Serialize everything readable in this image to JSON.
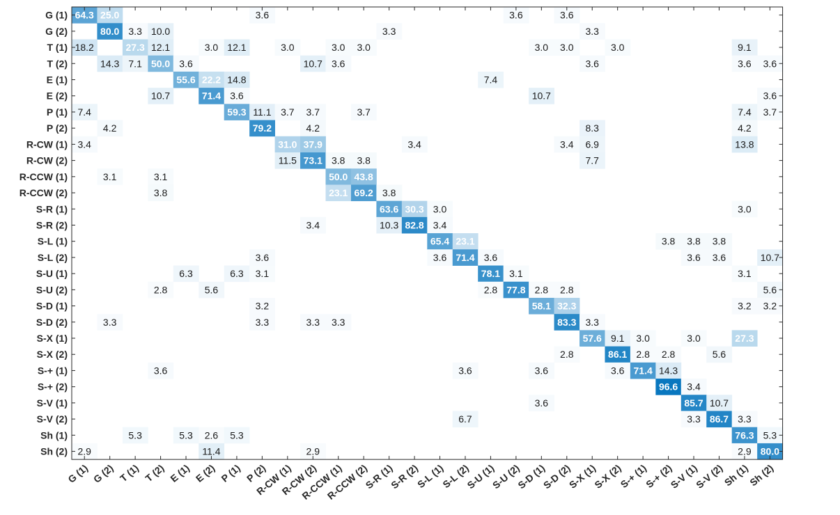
{
  "chart_data": {
    "type": "heatmap",
    "title": "",
    "xlabel": "",
    "ylabel": "",
    "colormap": {
      "low": "#ffffff",
      "high": "#0072bd"
    },
    "value_range": [
      0,
      100
    ],
    "grid": false,
    "categories": [
      "G (1)",
      "G (2)",
      "T (1)",
      "T (2)",
      "E (1)",
      "E (2)",
      "P (1)",
      "P (2)",
      "R-CW (1)",
      "R-CW (2)",
      "R-CCW (1)",
      "R-CCW (2)",
      "S-R (1)",
      "S-R (2)",
      "S-L (1)",
      "S-L (2)",
      "S-U (1)",
      "S-U (2)",
      "S-D (1)",
      "S-D (2)",
      "S-X (1)",
      "S-X (2)",
      "S-+ (1)",
      "S-+ (2)",
      "S-V (1)",
      "S-V (2)",
      "Sh (1)",
      "Sh (2)"
    ],
    "rows": [
      {
        "0": 64.3,
        "1": 25.0,
        "7": 3.6,
        "17": 3.6,
        "19": 3.6
      },
      {
        "1": 80.0,
        "2": 3.3,
        "3": 10.0,
        "12": 3.3,
        "20": 3.3
      },
      {
        "0": 18.2,
        "2": 27.3,
        "3": 12.1,
        "5": 3.0,
        "6": 12.1,
        "8": 3.0,
        "10": 3.0,
        "11": 3.0,
        "18": 3.0,
        "19": 3.0,
        "21": 3.0,
        "26": 9.1
      },
      {
        "1": 14.3,
        "2": 7.1,
        "3": 50.0,
        "4": 3.6,
        "9": 10.7,
        "10": 3.6,
        "20": 3.6,
        "26": 3.6,
        "27": 3.6
      },
      {
        "4": 55.6,
        "5": 22.2,
        "6": 14.8,
        "16": 7.4
      },
      {
        "3": 10.7,
        "5": 71.4,
        "6": 3.6,
        "18": 10.7,
        "27": 3.6
      },
      {
        "0": 7.4,
        "6": 59.3,
        "7": 11.1,
        "8": 3.7,
        "9": 3.7,
        "11": 3.7,
        "26": 7.4,
        "27": 3.7
      },
      {
        "1": 4.2,
        "7": 79.2,
        "9": 4.2,
        "20": 8.3,
        "26": 4.2
      },
      {
        "0": 3.4,
        "8": 31.0,
        "9": 37.9,
        "13": 3.4,
        "19": 3.4,
        "20": 6.9,
        "26": 13.8
      },
      {
        "8": 11.5,
        "9": 73.1,
        "10": 3.8,
        "11": 3.8,
        "20": 7.7
      },
      {
        "1": 3.1,
        "3": 3.1,
        "10": 50.0,
        "11": 43.8
      },
      {
        "3": 3.8,
        "10": 23.1,
        "11": 69.2,
        "12": 3.8
      },
      {
        "12": 63.6,
        "13": 30.3,
        "14": 3.0,
        "26": 3.0
      },
      {
        "9": 3.4,
        "12": 10.3,
        "13": 82.8,
        "14": 3.4
      },
      {
        "14": 65.4,
        "15": 23.1,
        "23": 3.8,
        "24": 3.8,
        "25": 3.8
      },
      {
        "7": 3.6,
        "14": 3.6,
        "15": 71.4,
        "16": 3.6,
        "24": 3.6,
        "25": 3.6,
        "27": 10.7
      },
      {
        "4": 6.3,
        "6": 6.3,
        "7": 3.1,
        "16": 78.1,
        "17": 3.1,
        "26": 3.1
      },
      {
        "3": 2.8,
        "5": 5.6,
        "16": 2.8,
        "17": 77.8,
        "18": 2.8,
        "19": 2.8,
        "27": 5.6
      },
      {
        "7": 3.2,
        "18": 58.1,
        "19": 32.3,
        "26": 3.2,
        "27": 3.2
      },
      {
        "1": 3.3,
        "7": 3.3,
        "9": 3.3,
        "10": 3.3,
        "19": 83.3,
        "20": 3.3
      },
      {
        "20": 57.6,
        "21": 9.1,
        "22": 3.0,
        "24": 3.0,
        "26": 27.3
      },
      {
        "19": 2.8,
        "21": 86.1,
        "22": 2.8,
        "23": 2.8,
        "25": 5.6
      },
      {
        "3": 3.6,
        "15": 3.6,
        "18": 3.6,
        "21": 3.6,
        "22": 71.4,
        "23": 14.3
      },
      {
        "23": 96.6,
        "24": 3.4
      },
      {
        "18": 3.6,
        "24": 85.7,
        "25": 10.7
      },
      {
        "15": 6.7,
        "24": 3.3,
        "25": 86.7,
        "26": 3.3
      },
      {
        "2": 5.3,
        "4": 5.3,
        "5": 2.6,
        "6": 5.3,
        "26": 76.3,
        "27": 5.3
      },
      {
        "0": 2.9,
        "5": 11.4,
        "9": 2.9,
        "26": 2.9,
        "27": 80.0
      }
    ]
  }
}
